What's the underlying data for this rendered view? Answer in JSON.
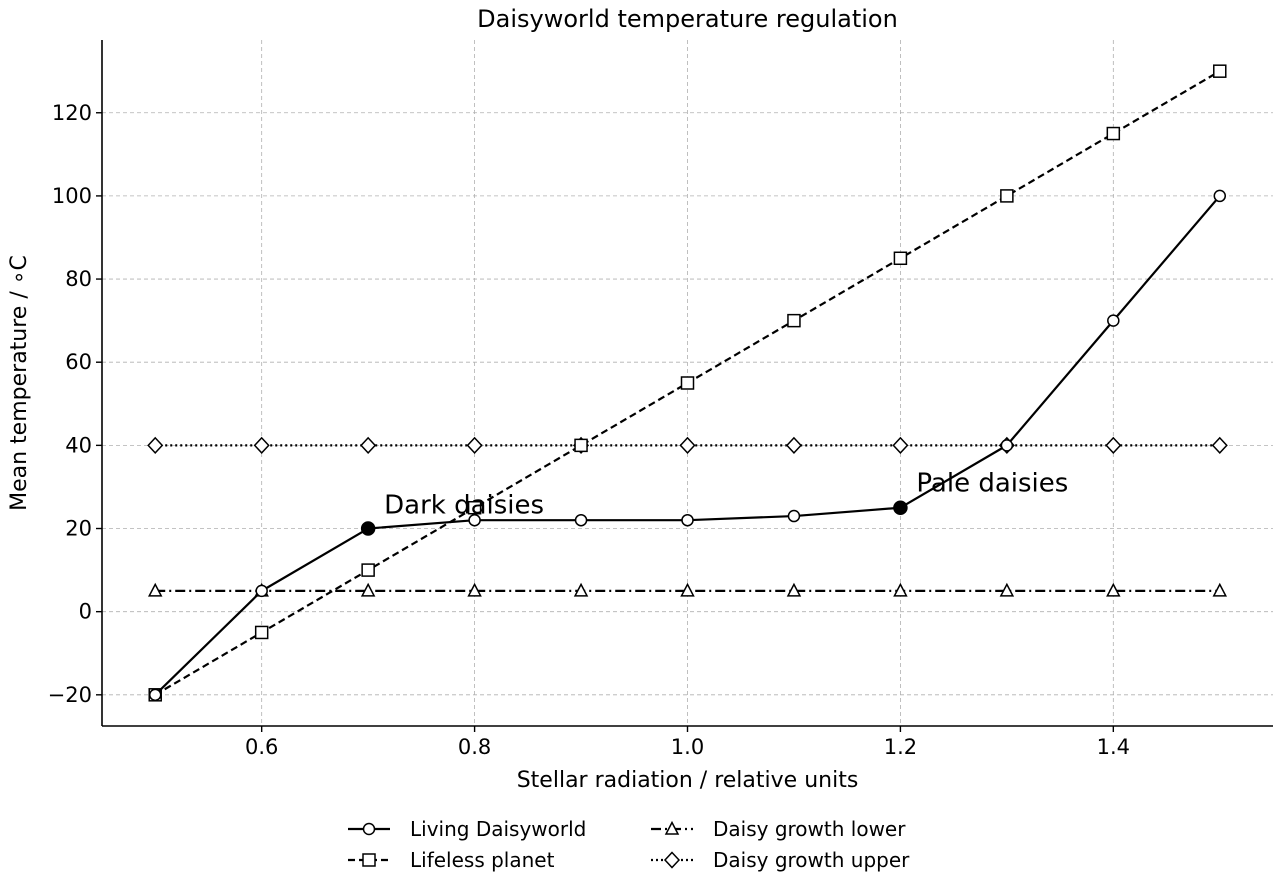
{
  "chart_data": {
    "type": "line",
    "title": "Daisyworld temperature regulation",
    "xlabel": "Stellar radiation / relative units",
    "ylabel": "Mean temperature / ∘C",
    "xlim": [
      0.45,
      1.55
    ],
    "ylim": [
      -27.5,
      137.5
    ],
    "xticks": [
      0.6,
      0.8,
      1.0,
      1.2,
      1.4
    ],
    "xtick_labels": [
      "0.6",
      "0.8",
      "1.0",
      "1.2",
      "1.4"
    ],
    "yticks": [
      -20,
      0,
      20,
      40,
      60,
      80,
      100,
      120
    ],
    "ytick_labels": [
      "−20",
      "0",
      "20",
      "40",
      "60",
      "80",
      "100",
      "120"
    ],
    "grid": true,
    "legend_position": "bottom-center",
    "x": [
      0.5,
      0.6,
      0.7,
      0.8,
      0.9,
      1.0,
      1.1,
      1.2,
      1.3,
      1.4,
      1.5
    ],
    "series": [
      {
        "name": "Living Daisyworld",
        "marker": "circle",
        "line_style": "solid",
        "values": [
          -20,
          5,
          20,
          22,
          22,
          22,
          23,
          25,
          40,
          70,
          100
        ]
      },
      {
        "name": "Lifeless planet",
        "marker": "square",
        "line_style": "dashed",
        "values": [
          -20,
          -5,
          10,
          25,
          40,
          55,
          70,
          85,
          100,
          115,
          130
        ]
      },
      {
        "name": "Daisy growth lower",
        "marker": "triangle",
        "line_style": "dashdot",
        "values": [
          5,
          5,
          5,
          5,
          5,
          5,
          5,
          5,
          5,
          5,
          5
        ]
      },
      {
        "name": "Daisy growth upper",
        "marker": "diamond",
        "line_style": "dotted",
        "values": [
          40,
          40,
          40,
          40,
          40,
          40,
          40,
          40,
          40,
          40,
          40
        ]
      }
    ],
    "annotations": [
      {
        "text": "Dark daisies",
        "x": 0.7,
        "y": 20
      },
      {
        "text": "Pale daisies",
        "x": 1.2,
        "y": 25
      }
    ]
  }
}
